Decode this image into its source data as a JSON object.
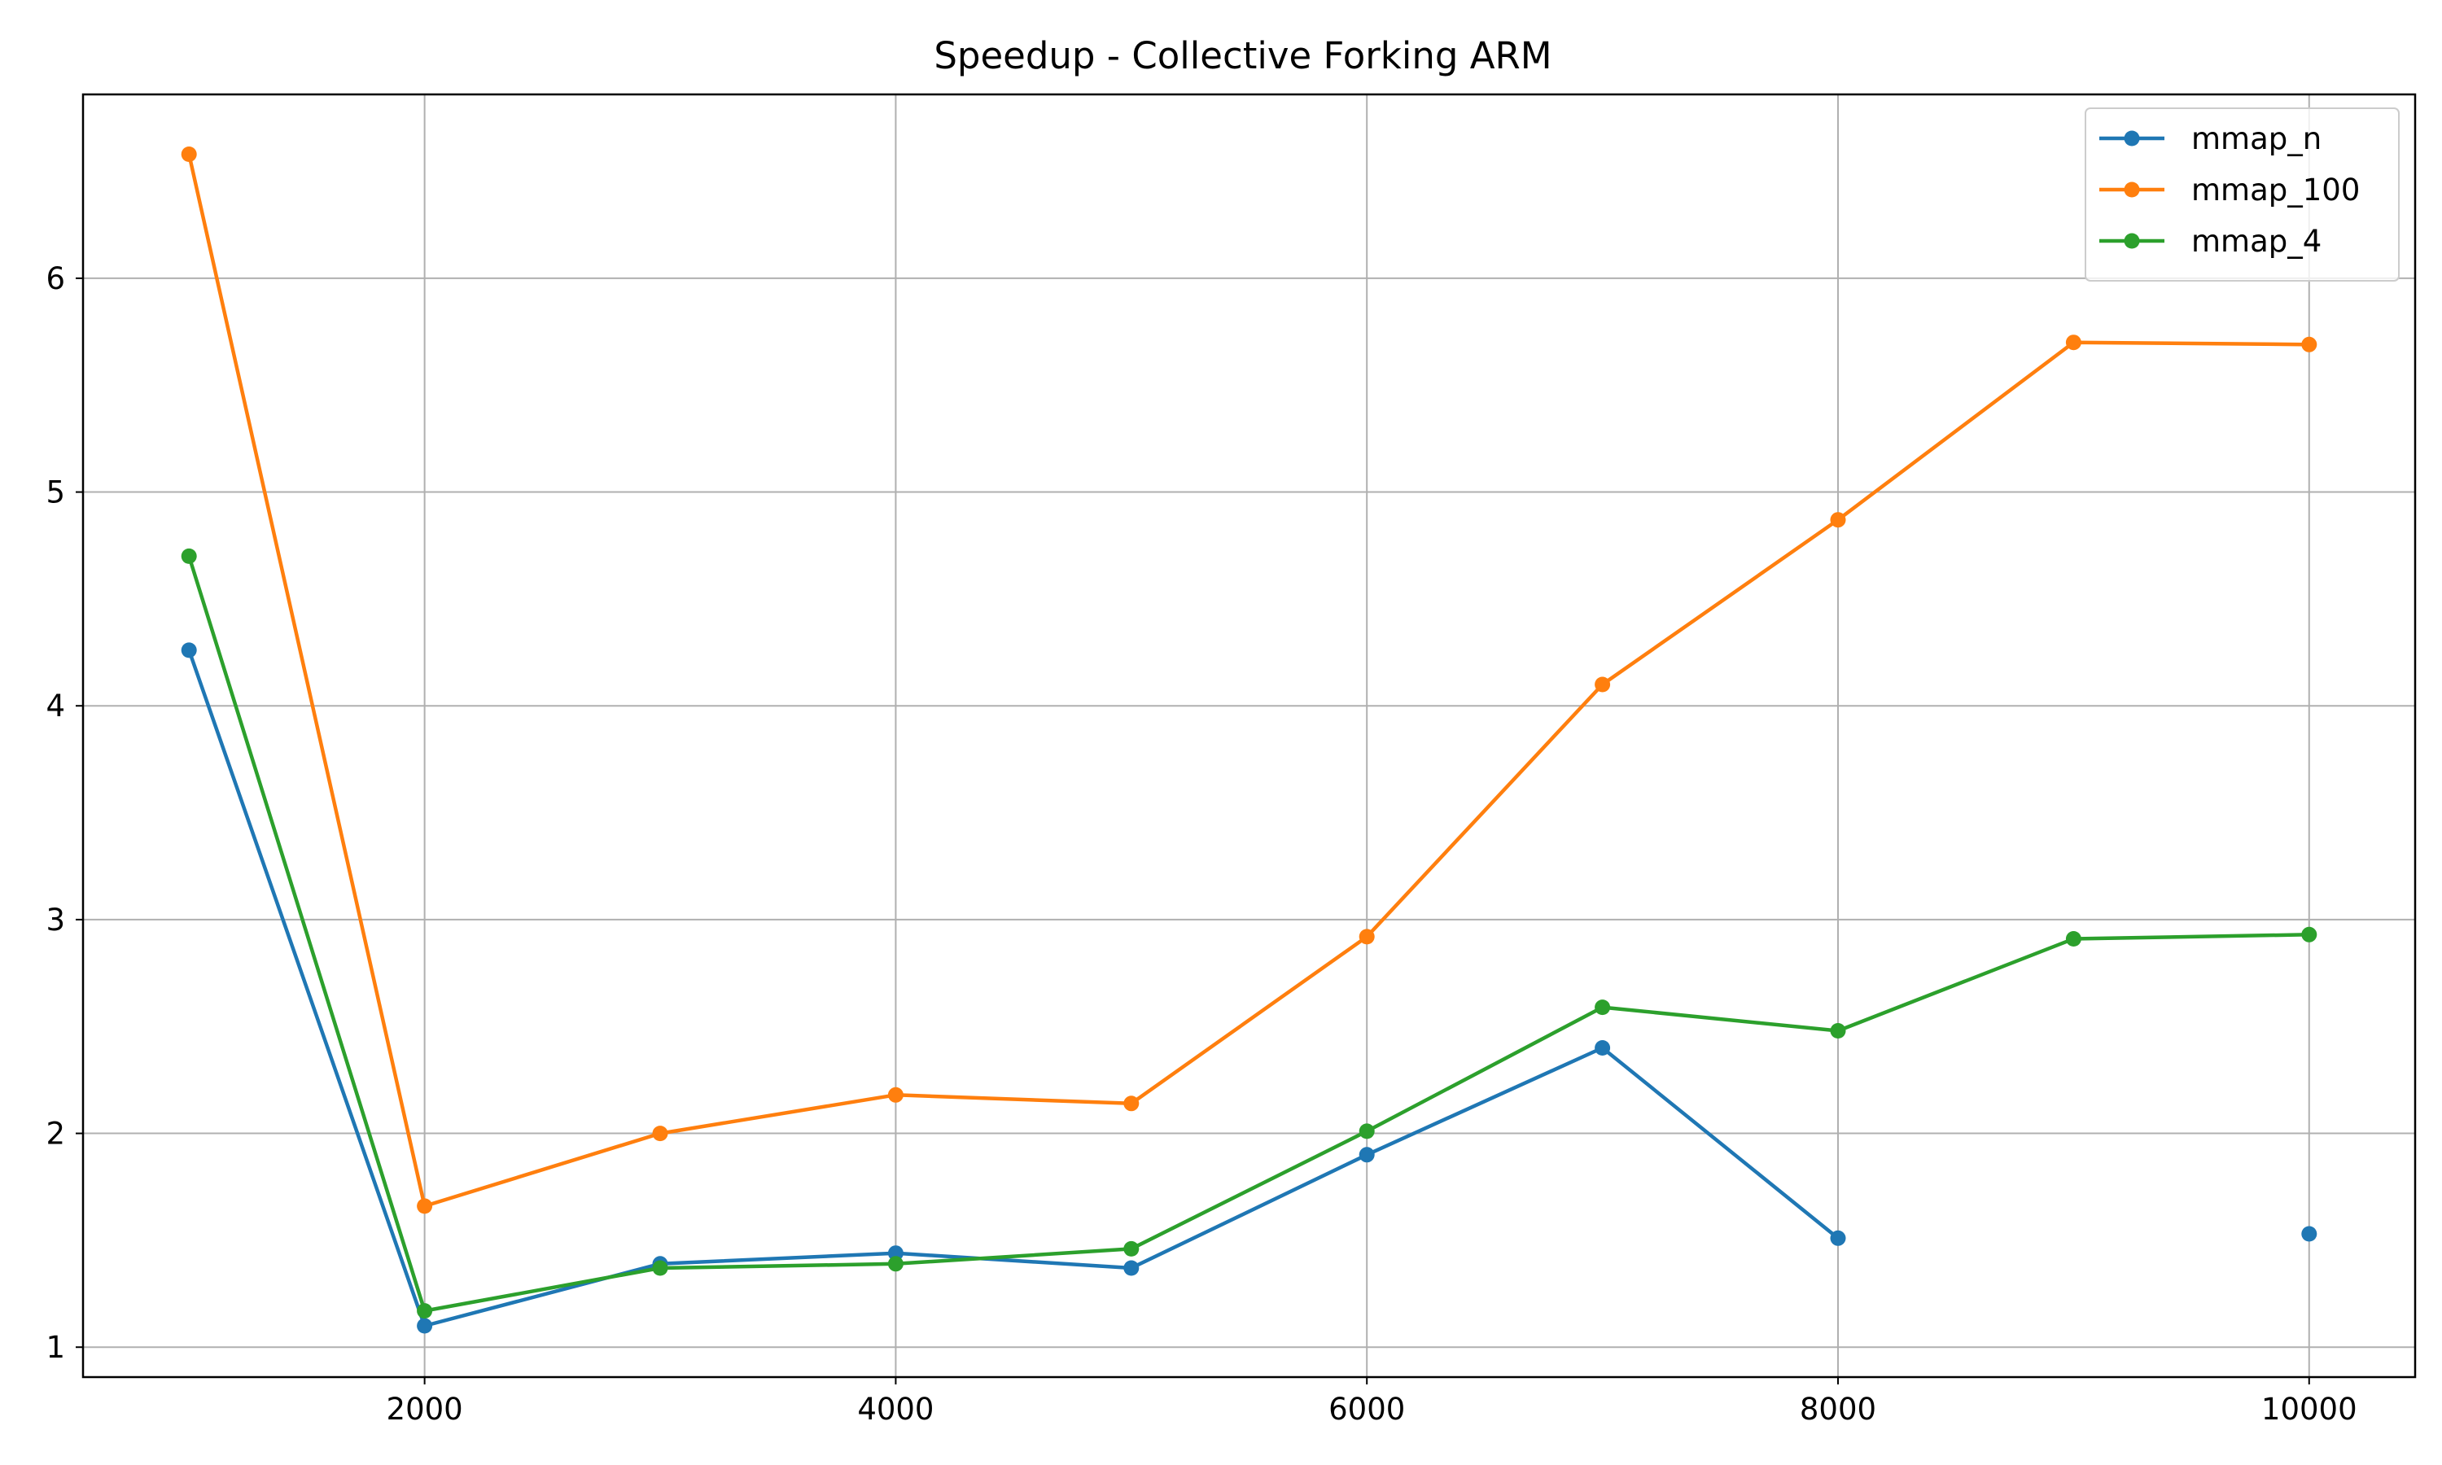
{
  "chart_data": {
    "type": "line",
    "title": "Speedup - Collective Forking ARM",
    "xlabel": "",
    "ylabel": "",
    "x": [
      1000,
      2000,
      3000,
      4000,
      5000,
      6000,
      7000,
      8000,
      9000,
      10000
    ],
    "xlim": [
      550,
      10450
    ],
    "ylim": [
      0.86,
      6.86
    ],
    "xticks": [
      2000,
      4000,
      6000,
      8000,
      10000
    ],
    "yticks": [
      1,
      2,
      3,
      4,
      5,
      6
    ],
    "grid": true,
    "legend_position": "top-right",
    "series": [
      {
        "name": "mmap_n",
        "color": "#1f77b4",
        "values": [
          4.26,
          1.1,
          1.39,
          1.44,
          1.37,
          1.9,
          2.4,
          1.51,
          null,
          1.53
        ]
      },
      {
        "name": "mmap_100",
        "color": "#ff7f0e",
        "values": [
          6.58,
          1.66,
          2.0,
          2.18,
          2.14,
          2.92,
          4.1,
          4.87,
          5.7,
          5.69
        ]
      },
      {
        "name": "mmap_4",
        "color": "#2ca02c",
        "values": [
          4.7,
          1.17,
          1.37,
          1.39,
          1.46,
          2.01,
          2.59,
          2.48,
          2.91,
          2.93
        ]
      }
    ]
  }
}
